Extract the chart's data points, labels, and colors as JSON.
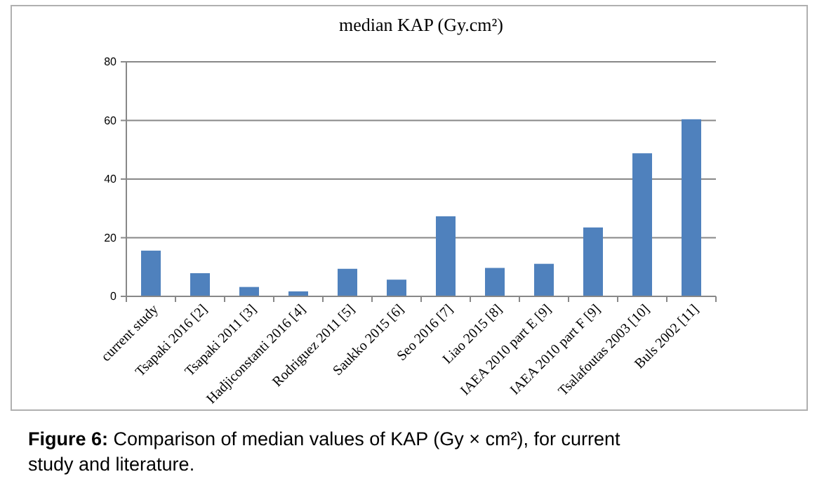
{
  "chart_data": {
    "type": "bar",
    "title": "median KAP (Gy.cm²)",
    "categories": [
      "current study",
      "Tsapaki 2016 [2]",
      "Tsapaki 2011 [3]",
      "Hadjiconstanti 2016 [4]",
      "Rodriguez 2011 [5]",
      "Saukko 2015 [6]",
      "Seo 2016 [7]",
      "Liao 2015 [8]",
      "IAEA 2010 part E [9]",
      "IAEA 2010 part F [9]",
      "Tsalafoutas 2003 [10]",
      "Buls 2002 [11]"
    ],
    "values": [
      15.6,
      7.9,
      3.2,
      1.7,
      9.4,
      5.7,
      27.3,
      9.7,
      11.1,
      23.5,
      48.8,
      60.4
    ],
    "color": "#4f81bd",
    "ylim": [
      0,
      80
    ],
    "yticks": [
      0,
      20,
      40,
      60,
      80
    ],
    "grid": "y",
    "annotations": [
      "Figure 6: Comparison of median values of KAP (Gy × cm²), for current study and literature."
    ]
  }
}
